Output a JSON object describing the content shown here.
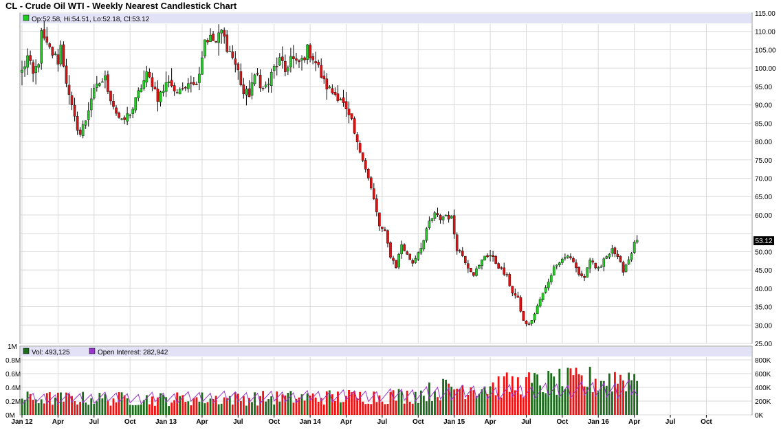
{
  "title": "CL - Crude Oil WTI - Weekly Nearest Candlestick Chart",
  "colors": {
    "up": "#22cc22",
    "down": "#dd1111",
    "vol_up": "#1a6b1a",
    "vol_down": "#ee1111",
    "open_interest": "#9933cc",
    "legend_band": "#e1e2f6",
    "grid": "#d9d9d9",
    "price_marker_bg": "#000000"
  },
  "price_panel": {
    "legend": "Op:52.58, Hi:54.51, Lo:52.18, Cl:53.12",
    "last_label": "53.12"
  },
  "volume_panel": {
    "vol_legend": "Vol: 493,125",
    "oi_legend": "Open Interest: 282,942",
    "top_label": "1M"
  },
  "chart_data": [
    {
      "type": "candlestick",
      "title": "CL - Crude Oil WTI - Weekly Nearest Candlestick Chart",
      "ylim": [
        25,
        115
      ],
      "yticks": [
        115,
        110,
        105,
        100,
        95,
        90,
        85,
        80,
        75,
        70,
        65,
        60,
        55,
        50,
        45,
        40,
        35,
        30,
        25
      ],
      "ytick_labels": [
        "115.00",
        "110.00",
        "105.00",
        "100.00",
        "95.00",
        "90.00",
        "85.00",
        "80.00",
        "75.00",
        "70.00",
        "65.00",
        "60.00",
        "",
        "50.00",
        "45.00",
        "40.00",
        "35.00",
        "30.00",
        "25.00"
      ],
      "xticks": [
        {
          "label": "Jan 12",
          "week": 0
        },
        {
          "label": "Apr",
          "week": 13
        },
        {
          "label": "Jul",
          "week": 26
        },
        {
          "label": "Oct",
          "week": 39
        },
        {
          "label": "Jan 13",
          "week": 52
        },
        {
          "label": "Apr",
          "week": 65
        },
        {
          "label": "Jul",
          "week": 78
        },
        {
          "label": "Oct",
          "week": 91
        },
        {
          "label": "Jan 14",
          "week": 104
        },
        {
          "label": "Apr",
          "week": 117
        },
        {
          "label": "Jul",
          "week": 130
        },
        {
          "label": "Oct",
          "week": 143
        },
        {
          "label": "Jan 15",
          "week": 156
        },
        {
          "label": "Apr",
          "week": 169
        },
        {
          "label": "Jul",
          "week": 182
        },
        {
          "label": "Oct",
          "week": 195
        },
        {
          "label": "Jan 16",
          "week": 208
        },
        {
          "label": "Apr",
          "week": 221
        },
        {
          "label": "Jul",
          "week": 234
        },
        {
          "label": "Oct",
          "week": 247
        }
      ],
      "grid": true,
      "last": {
        "open": 52.58,
        "high": 54.51,
        "low": 52.18,
        "close": 53.12
      },
      "close_anchors": [
        [
          0,
          99
        ],
        [
          2,
          103
        ],
        [
          4,
          98
        ],
        [
          6,
          102
        ],
        [
          7,
          109
        ],
        [
          9,
          106
        ],
        [
          11,
          104
        ],
        [
          13,
          102
        ],
        [
          14,
          106
        ],
        [
          17,
          92
        ],
        [
          19,
          86
        ],
        [
          21,
          82
        ],
        [
          23,
          86
        ],
        [
          25,
          92
        ],
        [
          28,
          96
        ],
        [
          30,
          97
        ],
        [
          32,
          92
        ],
        [
          34,
          88
        ],
        [
          36,
          85
        ],
        [
          38,
          87
        ],
        [
          40,
          89
        ],
        [
          43,
          95
        ],
        [
          45,
          98
        ],
        [
          47,
          96
        ],
        [
          49,
          92
        ],
        [
          51,
          94
        ],
        [
          53,
          97
        ],
        [
          55,
          94
        ],
        [
          57,
          93
        ],
        [
          59,
          96
        ],
        [
          61,
          97
        ],
        [
          62,
          95
        ],
        [
          64,
          99
        ],
        [
          66,
          108
        ],
        [
          68,
          108
        ],
        [
          70,
          107
        ],
        [
          72,
          110
        ],
        [
          74,
          106
        ],
        [
          76,
          103
        ],
        [
          78,
          99
        ],
        [
          80,
          93
        ],
        [
          82,
          93
        ],
        [
          83,
          96
        ],
        [
          85,
          98
        ],
        [
          87,
          94
        ],
        [
          89,
          96
        ],
        [
          91,
          100
        ],
        [
          93,
          102
        ],
        [
          95,
          99
        ],
        [
          97,
          103
        ],
        [
          99,
          101
        ],
        [
          101,
          102
        ],
        [
          103,
          105
        ],
        [
          105,
          103
        ],
        [
          107,
          100
        ],
        [
          109,
          96
        ],
        [
          111,
          94
        ],
        [
          113,
          93
        ],
        [
          115,
          92
        ],
        [
          117,
          88
        ],
        [
          119,
          85
        ],
        [
          121,
          79
        ],
        [
          123,
          76
        ],
        [
          125,
          70
        ],
        [
          127,
          64
        ],
        [
          129,
          57
        ],
        [
          131,
          55
        ],
        [
          133,
          49
        ],
        [
          135,
          46
        ],
        [
          137,
          52
        ],
        [
          139,
          49
        ],
        [
          141,
          47
        ],
        [
          143,
          50
        ],
        [
          145,
          53
        ],
        [
          147,
          58
        ],
        [
          149,
          60
        ],
        [
          151,
          59
        ],
        [
          153,
          60
        ],
        [
          155,
          59
        ],
        [
          157,
          51
        ],
        [
          159,
          49
        ],
        [
          161,
          46
        ],
        [
          163,
          44
        ],
        [
          165,
          46
        ],
        [
          167,
          49
        ],
        [
          169,
          49
        ],
        [
          171,
          47
        ],
        [
          173,
          45
        ],
        [
          175,
          43
        ],
        [
          177,
          39
        ],
        [
          179,
          37
        ],
        [
          181,
          31
        ],
        [
          183,
          30
        ],
        [
          185,
          33
        ],
        [
          187,
          37
        ],
        [
          189,
          40
        ],
        [
          191,
          44
        ],
        [
          193,
          47
        ],
        [
          195,
          48
        ],
        [
          197,
          49
        ],
        [
          199,
          47
        ],
        [
          201,
          44
        ],
        [
          203,
          43
        ],
        [
          205,
          48
        ],
        [
          207,
          45
        ],
        [
          209,
          46
        ],
        [
          211,
          49
        ],
        [
          213,
          51
        ],
        [
          215,
          48
        ],
        [
          217,
          45
        ],
        [
          219,
          48
        ],
        [
          221,
          52
        ],
        [
          222,
          53.12
        ]
      ],
      "volume": {
        "ylim": [
          0,
          1000000
        ],
        "yticks_left": [
          "1M",
          "0.8M",
          "0.6M",
          "0.4M",
          "0.2M",
          "0M"
        ],
        "yticks_right": [
          "800K",
          "600K",
          "400K",
          "200K",
          "0K"
        ],
        "last_volume": 493125,
        "last_open_interest": 282942,
        "volume_level_anchors": [
          [
            0,
            240000
          ],
          [
            50,
            230000
          ],
          [
            100,
            250000
          ],
          [
            140,
            280000
          ],
          [
            155,
            400000
          ],
          [
            175,
            430000
          ],
          [
            200,
            480000
          ],
          [
            222,
            560000
          ]
        ],
        "open_interest_level_anchors": [
          [
            0,
            280000
          ],
          [
            60,
            300000
          ],
          [
            120,
            320000
          ],
          [
            150,
            370000
          ],
          [
            200,
            420000
          ],
          [
            222,
            460000
          ]
        ]
      }
    }
  ]
}
